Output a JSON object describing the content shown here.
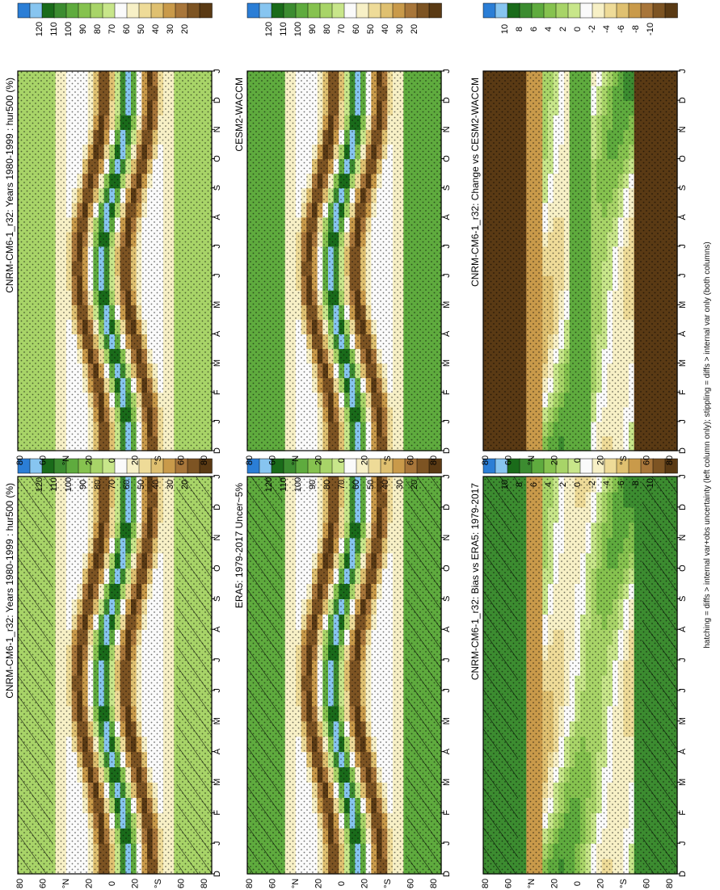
{
  "footnote": "hatching = diffs > internal var+obs uncertainty (left column only); stippling = diffs > internal var only (both columns)",
  "colors": {
    "rh_palette": [
      "#2b7ed6",
      "#87c5f0",
      "#1a6b1a",
      "#3c8c30",
      "#5fab3e",
      "#86c24f",
      "#a8d468",
      "#c8e68a",
      "#fafafa",
      "#f7f0c6",
      "#eedb98",
      "#dfc070",
      "#c99a4a",
      "#a8763a",
      "#7d5423",
      "#5a3a14"
    ],
    "diff_palette": [
      "#2b7ed6",
      "#87c5f0",
      "#1a6b1a",
      "#3c8c30",
      "#5fab3e",
      "#86c24f",
      "#a8d468",
      "#c8e68a",
      "#fafafa",
      "#f7f0c6",
      "#eedb98",
      "#dfc070",
      "#c99a4a",
      "#a8763a",
      "#7d5423",
      "#5a3a14"
    ]
  },
  "chart_data": [
    {
      "type": "heatmap",
      "title": "CNRM-CM6-1_r32: Years 1980-1999 : hur500 (%)",
      "x_ticks": [
        "D",
        "J",
        "F",
        "M",
        "A",
        "M",
        "J",
        "J",
        "A",
        "S",
        "O",
        "N",
        "D",
        "J"
      ],
      "y_ticks": [
        "80",
        "60",
        "°N",
        "20",
        "0",
        "20",
        "°S",
        "60",
        "80"
      ],
      "colorbar_labels": [
        "120",
        "110",
        "100",
        "90",
        "80",
        "70",
        "60",
        "50",
        "40",
        "30",
        "20"
      ],
      "stippling": true,
      "hatching": true
    },
    {
      "type": "heatmap",
      "title": "ERA5: 1979-2017 Uncer~5%",
      "x_ticks": [
        "D",
        "J",
        "F",
        "M",
        "A",
        "M",
        "J",
        "J",
        "A",
        "S",
        "O",
        "N",
        "D",
        "J"
      ],
      "y_ticks": [
        "80",
        "60",
        "°N",
        "20",
        "0",
        "20",
        "°S",
        "60",
        "80"
      ],
      "colorbar_labels": [
        "120",
        "110",
        "100",
        "90",
        "80",
        "70",
        "60",
        "50",
        "40",
        "30",
        "20"
      ],
      "stippling": true,
      "hatching": true
    },
    {
      "type": "heatmap",
      "title": "CNRM-CM6-1_r32: Bias vs ERA5: 1979-2017",
      "x_ticks": [
        "D",
        "J",
        "F",
        "M",
        "A",
        "M",
        "J",
        "J",
        "A",
        "S",
        "O",
        "N",
        "D",
        "J"
      ],
      "y_ticks": [
        "80",
        "60",
        "°N",
        "20",
        "0",
        "20",
        "°S",
        "60",
        "80"
      ],
      "colorbar_labels": [
        "10",
        "8",
        "6",
        "4",
        "2",
        "0",
        "-2",
        "-4",
        "-6",
        "-8",
        "-10"
      ],
      "stippling": true,
      "hatching": true
    },
    {
      "type": "heatmap",
      "title": "CNRM-CM6-1_r32: Years 1980-1999 : hur500 (%)",
      "x_ticks": [
        "D",
        "J",
        "F",
        "M",
        "A",
        "M",
        "J",
        "J",
        "A",
        "S",
        "O",
        "N",
        "D",
        "J"
      ],
      "y_ticks": [
        "80",
        "60",
        "°N",
        "20",
        "0",
        "20",
        "°S",
        "60",
        "80"
      ],
      "colorbar_labels": [
        "120",
        "110",
        "100",
        "90",
        "80",
        "70",
        "60",
        "50",
        "40",
        "30",
        "20"
      ],
      "stippling": true,
      "hatching": false
    },
    {
      "type": "heatmap",
      "title": "CESM2-WACCM",
      "x_ticks": [
        "D",
        "J",
        "F",
        "M",
        "A",
        "M",
        "J",
        "J",
        "A",
        "S",
        "O",
        "N",
        "D",
        "J"
      ],
      "y_ticks": [
        "80",
        "60",
        "°N",
        "20",
        "0",
        "20",
        "°S",
        "60",
        "80"
      ],
      "colorbar_labels": [
        "120",
        "110",
        "100",
        "90",
        "80",
        "70",
        "60",
        "50",
        "40",
        "30",
        "20"
      ],
      "stippling": true,
      "hatching": false
    },
    {
      "type": "heatmap",
      "title": "CNRM-CM6-1_r32: Change vs CESM2-WACCM",
      "x_ticks": [
        "D",
        "J",
        "F",
        "M",
        "A",
        "M",
        "J",
        "J",
        "A",
        "S",
        "O",
        "N",
        "D",
        "J"
      ],
      "y_ticks": [
        "80",
        "60",
        "°N",
        "20",
        "0",
        "20",
        "°S",
        "60",
        "80"
      ],
      "colorbar_labels": [
        "10",
        "8",
        "6",
        "4",
        "2",
        "0",
        "-2",
        "-4",
        "-6",
        "-8",
        "-10"
      ],
      "stippling": true,
      "hatching": false
    }
  ]
}
